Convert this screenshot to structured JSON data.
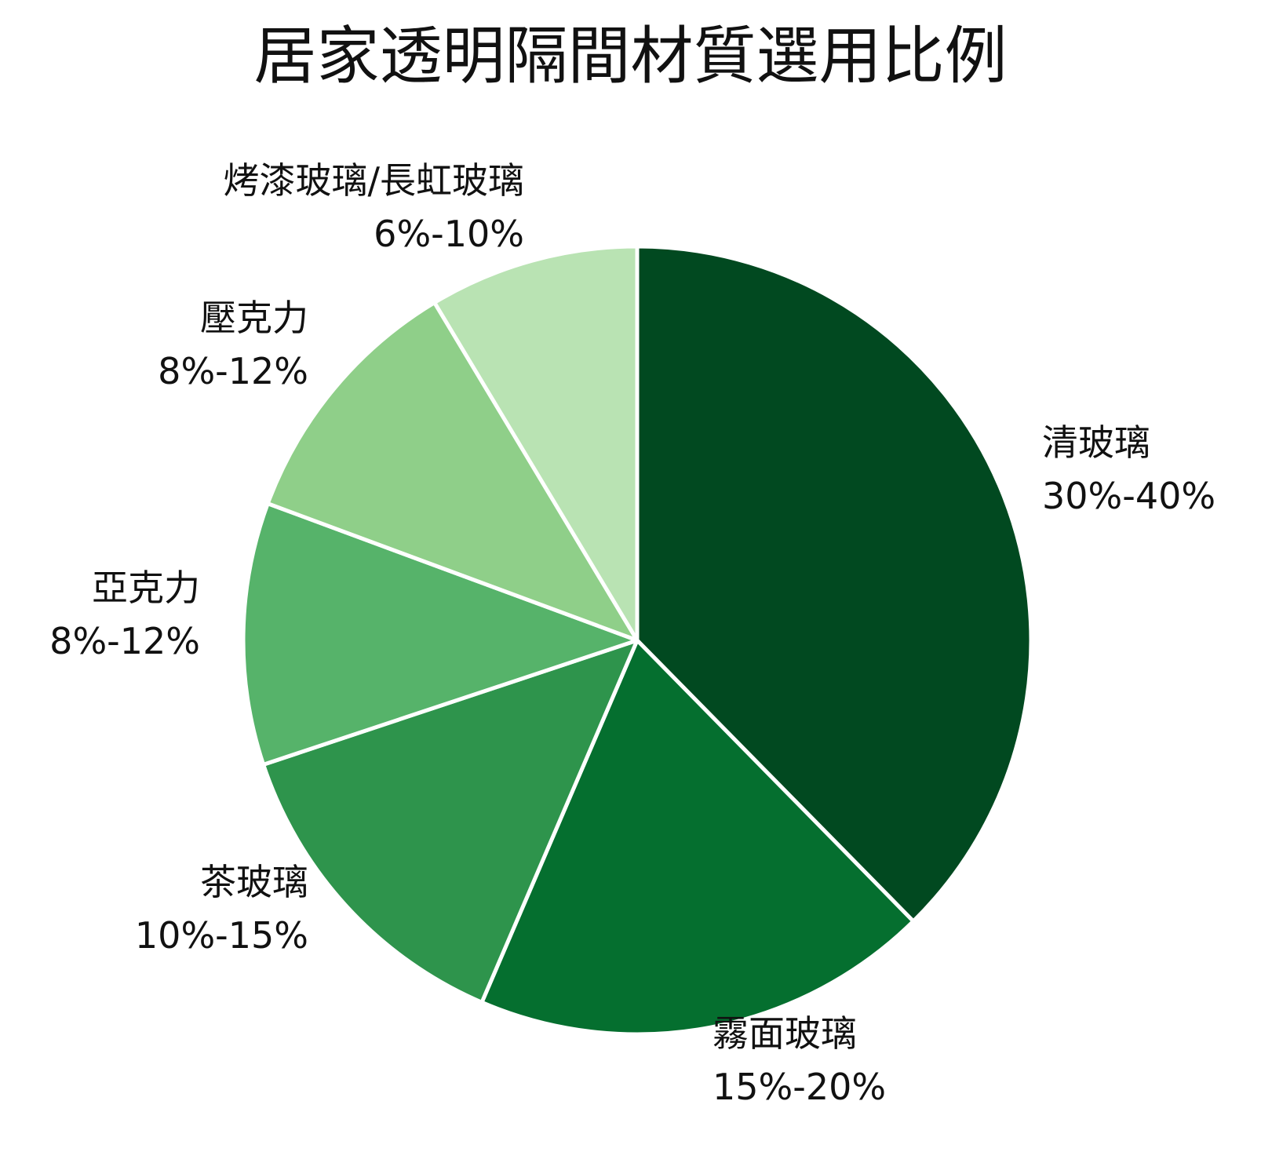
{
  "chart_data": {
    "type": "pie",
    "title": "居家透明隔間材質選用比例",
    "slices": [
      {
        "label": "清玻璃",
        "range": "30%-40%",
        "value": 35,
        "color": "#014920"
      },
      {
        "label": "霧面玻璃",
        "range": "15%-20%",
        "value": 17.5,
        "color": "#056f2f"
      },
      {
        "label": "茶玻璃",
        "range": "10%-15%",
        "value": 12.5,
        "color": "#2e944c"
      },
      {
        "label": "亞克力",
        "range": "8%-12%",
        "value": 10,
        "color": "#56b36a"
      },
      {
        "label": "壓克力",
        "range": "8%-12%",
        "value": 10,
        "color": "#8fcf89"
      },
      {
        "label": "烤漆玻璃/長虹玻璃",
        "range": "6%-10%",
        "value": 8,
        "color": "#b9e3b3"
      }
    ],
    "start_angle": "12 o'clock",
    "direction": "clockwise",
    "legend": "none"
  }
}
